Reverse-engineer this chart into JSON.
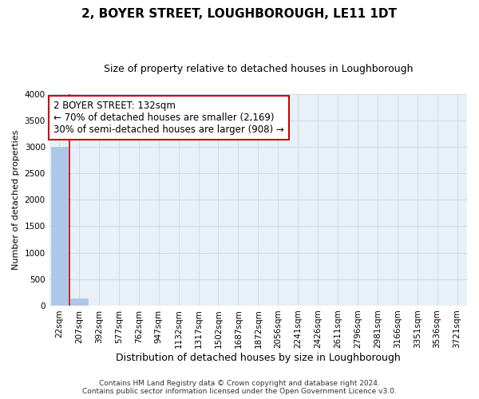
{
  "title": "2, BOYER STREET, LOUGHBOROUGH, LE11 1DT",
  "subtitle": "Size of property relative to detached houses in Loughborough",
  "xlabel": "Distribution of detached houses by size in Loughborough",
  "ylabel": "Number of detached properties",
  "footer_line1": "Contains HM Land Registry data © Crown copyright and database right 2024.",
  "footer_line2": "Contains public sector information licensed under the Open Government Licence v3.0.",
  "bin_labels": [
    "22sqm",
    "207sqm",
    "392sqm",
    "577sqm",
    "762sqm",
    "947sqm",
    "1132sqm",
    "1317sqm",
    "1502sqm",
    "1687sqm",
    "1872sqm",
    "2056sqm",
    "2241sqm",
    "2426sqm",
    "2611sqm",
    "2796sqm",
    "2981sqm",
    "3166sqm",
    "3351sqm",
    "3536sqm",
    "3721sqm"
  ],
  "bar_heights": [
    3000,
    130,
    3,
    2,
    1,
    1,
    1,
    0,
    0,
    0,
    0,
    0,
    0,
    0,
    0,
    0,
    0,
    0,
    0,
    0,
    0
  ],
  "bar_color": "#aec6e8",
  "bar_edge_color": "#aec6e8",
  "property_line_x": 0.5,
  "property_line_color": "#cc0000",
  "annotation_line1": "2 BOYER STREET: 132sqm",
  "annotation_line2": "← 70% of detached houses are smaller (2,169)",
  "annotation_line3": "30% of semi-detached houses are larger (908) →",
  "annotation_box_color": "#ffffff",
  "annotation_border_color": "#cc0000",
  "ylim": [
    0,
    4000
  ],
  "yticks": [
    0,
    500,
    1000,
    1500,
    2000,
    2500,
    3000,
    3500,
    4000
  ],
  "grid_color": "#cddcec",
  "background_color": "#e8f0f8",
  "title_fontsize": 11,
  "subtitle_fontsize": 9,
  "ylabel_fontsize": 8,
  "xlabel_fontsize": 9,
  "tick_fontsize": 7.5,
  "annotation_fontsize": 8.5,
  "footer_fontsize": 6.5
}
